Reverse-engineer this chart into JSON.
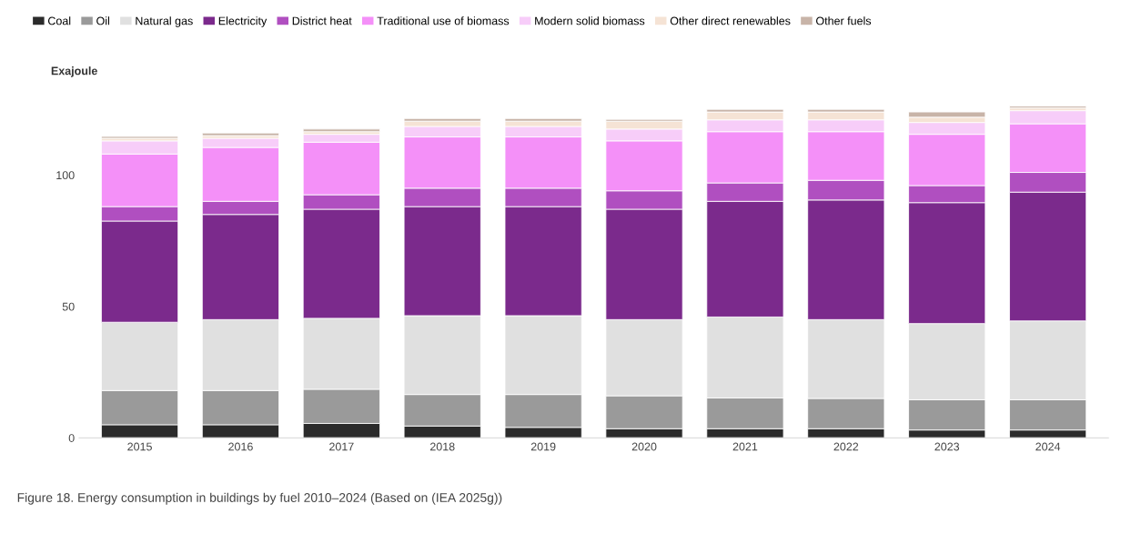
{
  "chart_data": {
    "type": "bar",
    "stacked": true,
    "ylabel": "Exajoule",
    "categories": [
      "2015",
      "2016",
      "2017",
      "2018",
      "2019",
      "2020",
      "2021",
      "2022",
      "2023",
      "2024"
    ],
    "series": [
      {
        "name": "Coal",
        "color": "#2b2b2b",
        "values": [
          5,
          5,
          5.5,
          4.5,
          4,
          3.5,
          3.5,
          3.5,
          3,
          3
        ]
      },
      {
        "name": "Oil",
        "color": "#9a9a9a",
        "values": [
          13,
          13,
          13,
          12,
          12.5,
          12.5,
          11.7,
          11.5,
          11.5,
          11.5
        ]
      },
      {
        "name": "Natural gas",
        "color": "#e0e0e0",
        "values": [
          26,
          27,
          27,
          30,
          30,
          29,
          30.8,
          30,
          29,
          30
        ]
      },
      {
        "name": "Electricity",
        "color": "#7b2a8c",
        "values": [
          38.5,
          40,
          41.5,
          41.5,
          41.5,
          42,
          44,
          45.5,
          46,
          49
        ]
      },
      {
        "name": "District heat",
        "color": "#b04fc0",
        "values": [
          5.5,
          5,
          5.5,
          7,
          7,
          7,
          7,
          7.5,
          6.5,
          7.5
        ]
      },
      {
        "name": "Traditional use of biomass",
        "color": "#f490f8",
        "values": [
          20,
          20.5,
          20,
          19.5,
          19.5,
          19,
          19.5,
          18.5,
          19.5,
          18.5
        ]
      },
      {
        "name": "Modern solid biomass",
        "color": "#f7cdf9",
        "values": [
          5,
          3.5,
          3,
          4,
          4,
          4.5,
          4.5,
          4.5,
          4.5,
          5
        ]
      },
      {
        "name": "Other direct renewables",
        "color": "#f5e3d5",
        "values": [
          1,
          1,
          1,
          2,
          2,
          3,
          3,
          3,
          2,
          1
        ]
      },
      {
        "name": "Other fuels",
        "color": "#c8b4a8",
        "values": [
          0.7,
          1,
          1,
          1,
          1,
          0.7,
          1,
          1,
          2,
          0.7
        ]
      }
    ],
    "ylim": [
      0,
      128
    ],
    "yticks": [
      0,
      50,
      100
    ],
    "grid": false,
    "legend": "top",
    "annotations": [
      "Figure 18. Energy consumption in buildings by fuel 2010–2024 (Based on (IEA 2025g))"
    ]
  }
}
